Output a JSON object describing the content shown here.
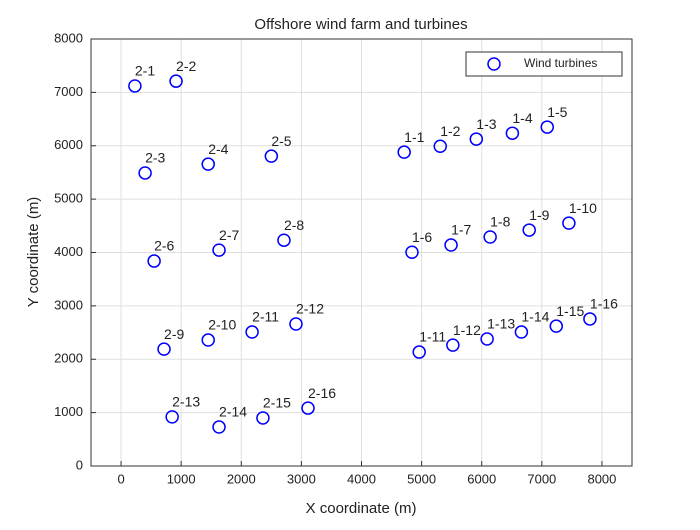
{
  "chart_data": {
    "type": "scatter",
    "title": "Offshore wind farm and turbines",
    "xlabel": "X coordinate (m)",
    "ylabel": "Y coordinate (m)",
    "xlim": [
      -500,
      8500
    ],
    "ylim": [
      0,
      8000
    ],
    "xticks": [
      0,
      1000,
      2000,
      3000,
      4000,
      5000,
      6000,
      7000,
      8000
    ],
    "yticks": [
      0,
      1000,
      2000,
      3000,
      4000,
      5000,
      6000,
      7000,
      8000
    ],
    "grid": true,
    "legend": "upper right",
    "series": [
      {
        "name": "Wind turbines",
        "color": "#0000ff",
        "labels": [
          "2-1",
          "2-2",
          "2-3",
          "2-4",
          "2-5",
          "2-6",
          "2-7",
          "2-8",
          "2-9",
          "2-10",
          "2-11",
          "2-12",
          "2-13",
          "2-14",
          "2-15",
          "2-16",
          "1-1",
          "1-2",
          "1-3",
          "1-4",
          "1-5",
          "1-6",
          "1-7",
          "1-8",
          "1-9",
          "1-10",
          "1-11",
          "1-12",
          "1-13",
          "1-14",
          "1-15",
          "1-16"
        ],
        "x": [
          230,
          915,
          400,
          1450,
          2500,
          550,
          1630,
          2710,
          715,
          1450,
          2180,
          2910,
          850,
          1630,
          2360,
          3110,
          4710,
          5310,
          5910,
          6510,
          7090,
          4840,
          5490,
          6140,
          6790,
          7450,
          4960,
          5520,
          6090,
          6660,
          7240,
          7800
        ],
        "values": [
          7120,
          7210,
          5490,
          5655,
          5805,
          3840,
          4045,
          4230,
          2190,
          2360,
          2510,
          2660,
          920,
          730,
          900,
          1085,
          5880,
          5990,
          6125,
          6235,
          6350,
          4005,
          4140,
          4290,
          4420,
          4550,
          2135,
          2265,
          2380,
          2510,
          2620,
          2755
        ]
      }
    ]
  }
}
